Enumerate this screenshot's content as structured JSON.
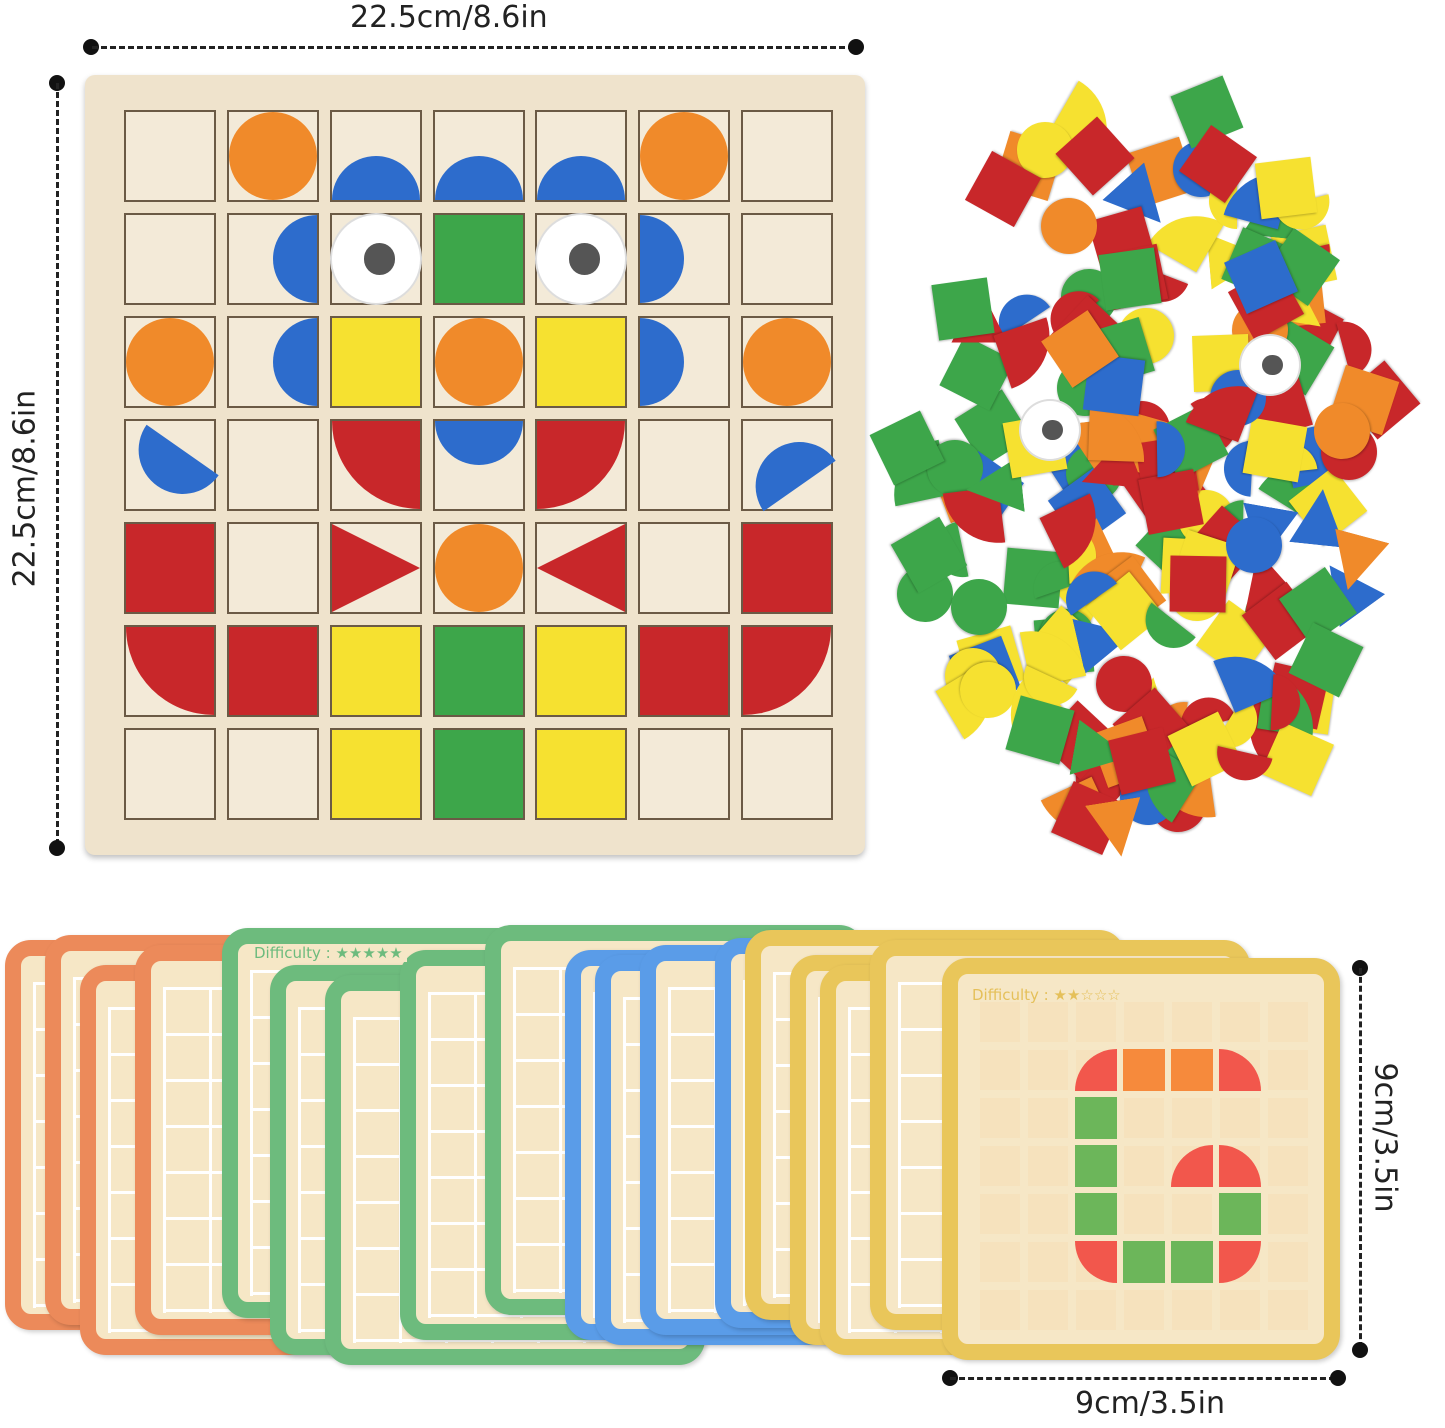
{
  "dimensions": {
    "board_width": "22.5cm/8.6in",
    "board_height": "22.5cm/8.6in",
    "card_height": "9cm/3.5in",
    "card_width": "9cm/3.5in"
  },
  "card": {
    "difficulty_label": "Difficulty :",
    "stars": "★★☆☆☆",
    "back_label": "Difficulty :",
    "back_stars": "★★★★★"
  },
  "colors": {
    "red": "#c8272a",
    "orange": "#f08a2a",
    "yellow": "#f6e130",
    "green": "#3da64a",
    "blue": "#2d6ccc",
    "card_orange": "#ec8a5a",
    "card_green": "#6dbb7d",
    "card_blue": "#5a9ce8",
    "card_yellow": "#e9c65a",
    "card_bg": "#f6e7c6",
    "print_red": "#f2574c",
    "print_orange": "#f68a3c",
    "print_green": "#6cb65a"
  }
}
